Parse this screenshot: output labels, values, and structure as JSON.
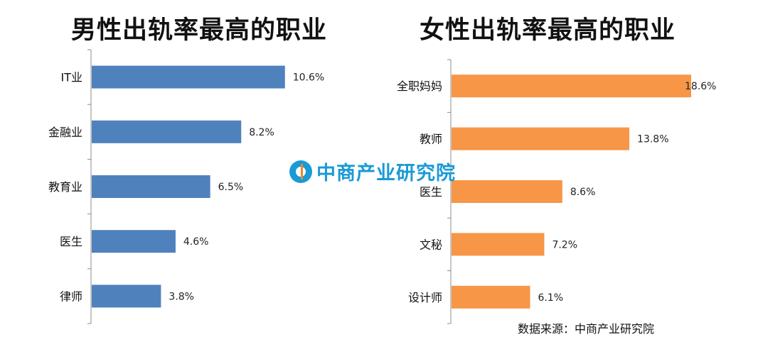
{
  "charts": {
    "left_title": "男性出轨率最高的职业",
    "right_title": "女性出轨率最高的职业"
  },
  "watermark": {
    "text": "中商产业研究院",
    "icon": "zhongshang-logo-icon"
  },
  "source": "数据来源：中商产业研究院",
  "colors": {
    "male_bar": "#4f81bd",
    "female_bar": "#f79646"
  },
  "chart_data": [
    {
      "type": "bar",
      "orientation": "horizontal",
      "title": "男性出轨率最高的职业",
      "categories": [
        "IT业",
        "金融业",
        "教育业",
        "医生",
        "律师"
      ],
      "values": [
        10.6,
        8.2,
        6.5,
        4.6,
        3.8
      ],
      "value_labels": [
        "10.6%",
        "8.2%",
        "6.5%",
        "4.6%",
        "3.8%"
      ],
      "unit": "%",
      "bar_color": "#4f81bd",
      "xlim": [
        0,
        11
      ],
      "grid": false
    },
    {
      "type": "bar",
      "orientation": "horizontal",
      "title": "女性出轨率最高的职业",
      "categories": [
        "全职妈妈",
        "教师",
        "医生",
        "文秘",
        "设计师"
      ],
      "values": [
        18.6,
        13.8,
        8.6,
        7.2,
        6.1
      ],
      "value_labels": [
        "18.6%",
        "13.8%",
        "8.6%",
        "7.2%",
        "6.1%"
      ],
      "unit": "%",
      "bar_color": "#f79646",
      "xlim": [
        0,
        18.6
      ],
      "grid": false
    }
  ]
}
